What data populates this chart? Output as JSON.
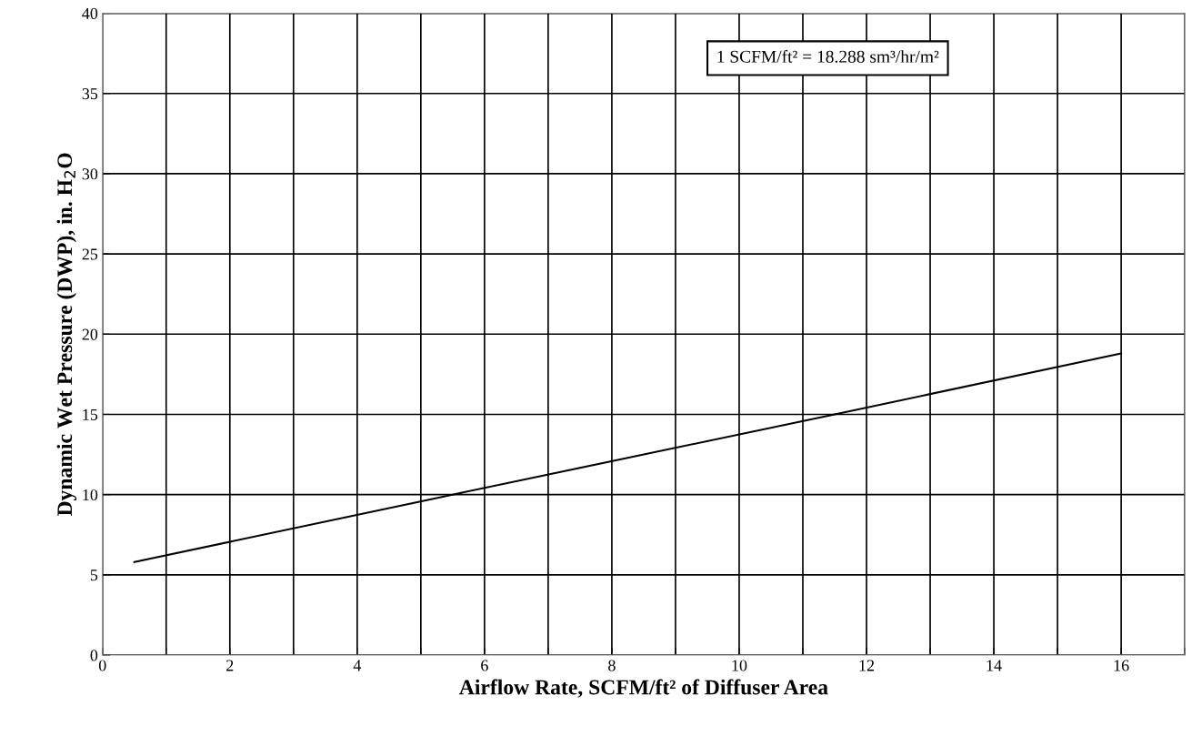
{
  "chart_data": {
    "type": "line",
    "xlabel": "Airflow Rate, SCFM/ft² of Diffuser Area",
    "ylabel": "Dynamic Wet Pressure (DWP), in. H$_{2}$O",
    "annotations": [
      "1 SCFM/ft² = 18.288 sm³/hr/m²"
    ],
    "series": [
      {
        "color": "#000000",
        "x": [
          0.5,
          5.5,
          11.5,
          16
        ],
        "values": [
          5.8,
          10,
          15,
          18.8
        ]
      }
    ],
    "xlim": [
      0,
      17
    ],
    "ylim": [
      0,
      40
    ],
    "xticks": [
      0,
      {
        "value": 1,
        "label": null
      },
      2,
      {
        "value": 3,
        "label": null
      },
      4,
      {
        "value": 5,
        "label": null
      },
      6,
      {
        "value": 7,
        "label": null
      },
      8,
      {
        "value": 9,
        "label": null
      },
      10,
      {
        "value": 11,
        "label": null
      },
      12,
      {
        "value": 13,
        "label": null
      },
      14,
      {
        "value": 15,
        "label": null
      },
      16,
      {
        "value": 17,
        "label": null
      }
    ],
    "yticks": [
      0,
      5,
      10,
      15,
      20,
      25,
      30,
      35,
      40
    ],
    "grid": true,
    "marker": "none",
    "line_style": "solid"
  }
}
